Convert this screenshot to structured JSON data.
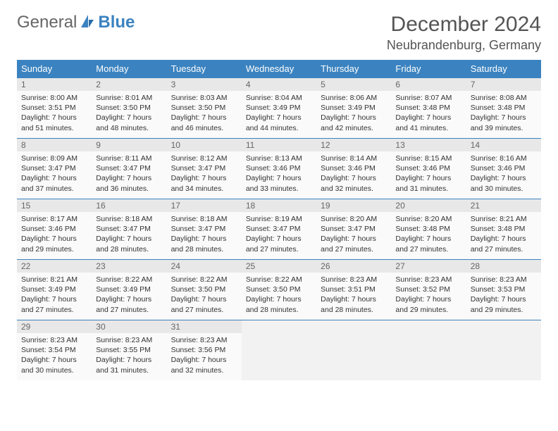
{
  "brand": {
    "part1": "General",
    "part2": "Blue",
    "logo_color": "#3b83c0",
    "text_color": "#666666"
  },
  "title": "December 2024",
  "location": "Neubrandenburg, Germany",
  "colors": {
    "header_bg": "#3b83c0",
    "header_text": "#ffffff",
    "cell_bg": "#fafafa",
    "daynum_bg": "#e8e8e8",
    "border": "#3b83c0"
  },
  "day_headers": [
    "Sunday",
    "Monday",
    "Tuesday",
    "Wednesday",
    "Thursday",
    "Friday",
    "Saturday"
  ],
  "weeks": [
    [
      {
        "n": "1",
        "sr": "8:00 AM",
        "ss": "3:51 PM",
        "dl": "7 hours and 51 minutes."
      },
      {
        "n": "2",
        "sr": "8:01 AM",
        "ss": "3:50 PM",
        "dl": "7 hours and 48 minutes."
      },
      {
        "n": "3",
        "sr": "8:03 AM",
        "ss": "3:50 PM",
        "dl": "7 hours and 46 minutes."
      },
      {
        "n": "4",
        "sr": "8:04 AM",
        "ss": "3:49 PM",
        "dl": "7 hours and 44 minutes."
      },
      {
        "n": "5",
        "sr": "8:06 AM",
        "ss": "3:49 PM",
        "dl": "7 hours and 42 minutes."
      },
      {
        "n": "6",
        "sr": "8:07 AM",
        "ss": "3:48 PM",
        "dl": "7 hours and 41 minutes."
      },
      {
        "n": "7",
        "sr": "8:08 AM",
        "ss": "3:48 PM",
        "dl": "7 hours and 39 minutes."
      }
    ],
    [
      {
        "n": "8",
        "sr": "8:09 AM",
        "ss": "3:47 PM",
        "dl": "7 hours and 37 minutes."
      },
      {
        "n": "9",
        "sr": "8:11 AM",
        "ss": "3:47 PM",
        "dl": "7 hours and 36 minutes."
      },
      {
        "n": "10",
        "sr": "8:12 AM",
        "ss": "3:47 PM",
        "dl": "7 hours and 34 minutes."
      },
      {
        "n": "11",
        "sr": "8:13 AM",
        "ss": "3:46 PM",
        "dl": "7 hours and 33 minutes."
      },
      {
        "n": "12",
        "sr": "8:14 AM",
        "ss": "3:46 PM",
        "dl": "7 hours and 32 minutes."
      },
      {
        "n": "13",
        "sr": "8:15 AM",
        "ss": "3:46 PM",
        "dl": "7 hours and 31 minutes."
      },
      {
        "n": "14",
        "sr": "8:16 AM",
        "ss": "3:46 PM",
        "dl": "7 hours and 30 minutes."
      }
    ],
    [
      {
        "n": "15",
        "sr": "8:17 AM",
        "ss": "3:46 PM",
        "dl": "7 hours and 29 minutes."
      },
      {
        "n": "16",
        "sr": "8:18 AM",
        "ss": "3:47 PM",
        "dl": "7 hours and 28 minutes."
      },
      {
        "n": "17",
        "sr": "8:18 AM",
        "ss": "3:47 PM",
        "dl": "7 hours and 28 minutes."
      },
      {
        "n": "18",
        "sr": "8:19 AM",
        "ss": "3:47 PM",
        "dl": "7 hours and 27 minutes."
      },
      {
        "n": "19",
        "sr": "8:20 AM",
        "ss": "3:47 PM",
        "dl": "7 hours and 27 minutes."
      },
      {
        "n": "20",
        "sr": "8:20 AM",
        "ss": "3:48 PM",
        "dl": "7 hours and 27 minutes."
      },
      {
        "n": "21",
        "sr": "8:21 AM",
        "ss": "3:48 PM",
        "dl": "7 hours and 27 minutes."
      }
    ],
    [
      {
        "n": "22",
        "sr": "8:21 AM",
        "ss": "3:49 PM",
        "dl": "7 hours and 27 minutes."
      },
      {
        "n": "23",
        "sr": "8:22 AM",
        "ss": "3:49 PM",
        "dl": "7 hours and 27 minutes."
      },
      {
        "n": "24",
        "sr": "8:22 AM",
        "ss": "3:50 PM",
        "dl": "7 hours and 27 minutes."
      },
      {
        "n": "25",
        "sr": "8:22 AM",
        "ss": "3:50 PM",
        "dl": "7 hours and 28 minutes."
      },
      {
        "n": "26",
        "sr": "8:23 AM",
        "ss": "3:51 PM",
        "dl": "7 hours and 28 minutes."
      },
      {
        "n": "27",
        "sr": "8:23 AM",
        "ss": "3:52 PM",
        "dl": "7 hours and 29 minutes."
      },
      {
        "n": "28",
        "sr": "8:23 AM",
        "ss": "3:53 PM",
        "dl": "7 hours and 29 minutes."
      }
    ],
    [
      {
        "n": "29",
        "sr": "8:23 AM",
        "ss": "3:54 PM",
        "dl": "7 hours and 30 minutes."
      },
      {
        "n": "30",
        "sr": "8:23 AM",
        "ss": "3:55 PM",
        "dl": "7 hours and 31 minutes."
      },
      {
        "n": "31",
        "sr": "8:23 AM",
        "ss": "3:56 PM",
        "dl": "7 hours and 32 minutes."
      },
      null,
      null,
      null,
      null
    ]
  ],
  "labels": {
    "sunrise": "Sunrise:",
    "sunset": "Sunset:",
    "daylight": "Daylight:"
  }
}
